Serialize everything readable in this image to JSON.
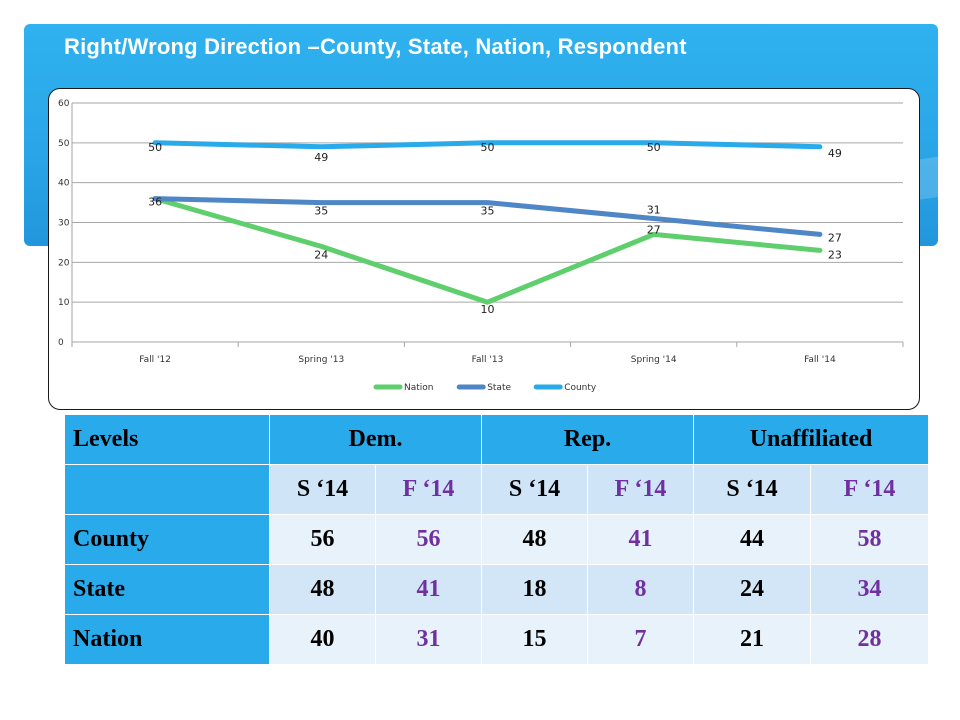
{
  "slide": {
    "title": "Right/Wrong Direction –County, State, Nation, Respondent"
  },
  "chart_data": {
    "type": "line",
    "categories": [
      "Fall '12",
      "Spring '13",
      "Fall '13",
      "Spring '14",
      "Fall '14"
    ],
    "series": [
      {
        "name": "Nation",
        "color": "#5fcf6e",
        "values": [
          36,
          24,
          10,
          27,
          23
        ]
      },
      {
        "name": "State",
        "color": "#4f86c6",
        "values": [
          36,
          35,
          35,
          31,
          27
        ]
      },
      {
        "name": "County",
        "color": "#29aaea",
        "values": [
          50,
          49,
          50,
          50,
          49
        ]
      }
    ],
    "data_labels": [
      {
        "series": "County",
        "values": [
          "50",
          "49",
          "50",
          "50",
          "49"
        ]
      },
      {
        "series": "State",
        "values": [
          "36",
          "35",
          "35",
          "31",
          "27"
        ]
      },
      {
        "series": "Nation",
        "values": [
          "",
          "24",
          "10",
          "27",
          "23"
        ]
      }
    ],
    "y_ticks": [
      "0",
      "10",
      "20",
      "30",
      "40",
      "50",
      "60"
    ],
    "ylim": [
      0,
      60
    ],
    "grid": true,
    "legend_position": "bottom"
  },
  "table": {
    "header": [
      "Levels",
      "Dem.",
      "Rep.",
      "Unaffiliated"
    ],
    "subheader": [
      "",
      "S ‘14",
      "F ‘14",
      "S ‘14",
      "F ‘14",
      "S ‘14",
      "F ‘14"
    ],
    "rows": [
      {
        "label": "County",
        "values": [
          "56",
          "56",
          "48",
          "41",
          "44",
          "58"
        ]
      },
      {
        "label": "State",
        "values": [
          "48",
          "41",
          "18",
          "8",
          "24",
          "34"
        ]
      },
      {
        "label": "Nation",
        "values": [
          "40",
          "31",
          "15",
          "7",
          "21",
          "28"
        ]
      }
    ],
    "colors": {
      "spring": "#000000",
      "fall": "#7030a0",
      "header_bg": "#29aaea"
    }
  }
}
